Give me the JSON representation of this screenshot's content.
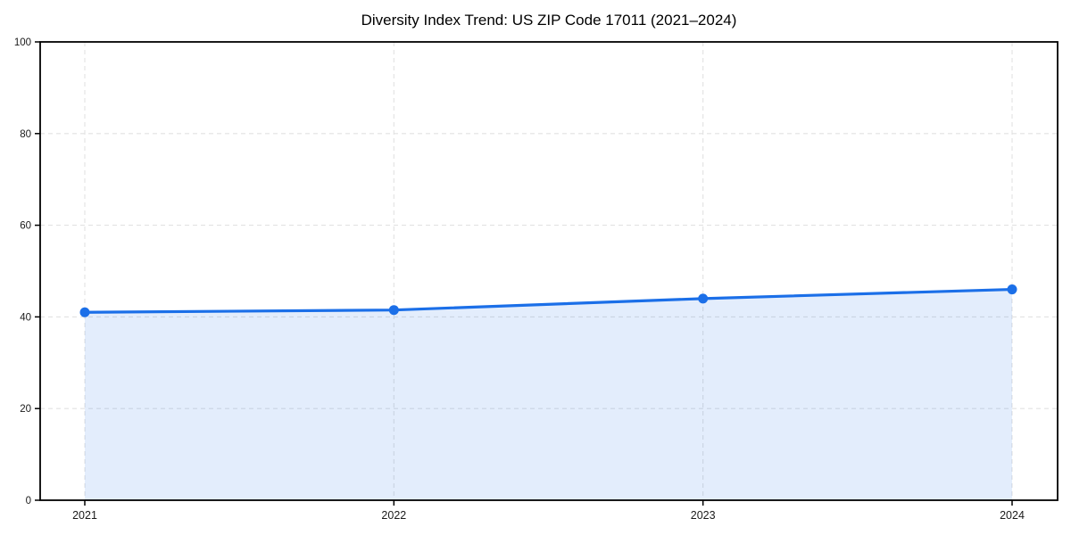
{
  "chart_data": {
    "type": "line",
    "title": "Diversity Index Trend: US ZIP Code 17011 (2021–2024)",
    "x": [
      "2021",
      "2022",
      "2023",
      "2024"
    ],
    "series": [
      {
        "name": "Diversity Index",
        "values": [
          41,
          41.5,
          44,
          46
        ]
      }
    ],
    "xlabel": "",
    "ylabel": "",
    "ylim": [
      0,
      100
    ],
    "yticks": [
      0,
      20,
      40,
      60,
      80,
      100
    ],
    "grid": true,
    "grid_style": "dashed",
    "legend_position": "none",
    "area_fill": true,
    "marker": "circle",
    "colors": {
      "line": "#1b6fe8",
      "fill": "rgba(27,111,232,0.12)",
      "grid": "#e2e2e2",
      "axis": "#000000",
      "tick_text": "#1a1a1a",
      "title_text": "#000000"
    }
  }
}
